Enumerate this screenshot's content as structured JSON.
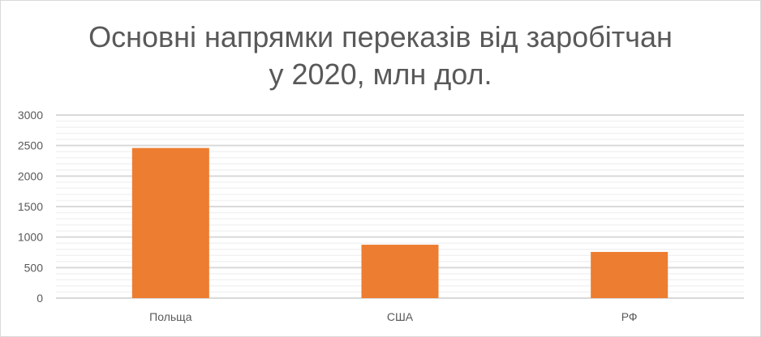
{
  "chart_data": {
    "type": "bar",
    "title_line1": "Основні напрямки переказів від заробітчан",
    "title_line2": "у 2020, млн дол.",
    "categories": [
      "Польща",
      "США",
      "РФ"
    ],
    "values": [
      2460,
      875,
      757
    ],
    "ylim": [
      0,
      3000
    ],
    "yticks": [
      0,
      500,
      1000,
      1500,
      2000,
      2500,
      3000
    ],
    "minor_grid_step": 100,
    "grid": true,
    "legend": "none",
    "colors": {
      "bar": "#ed7d31",
      "major_grid": "#d9d9d9",
      "minor_grid": "#f2f2f2"
    }
  }
}
